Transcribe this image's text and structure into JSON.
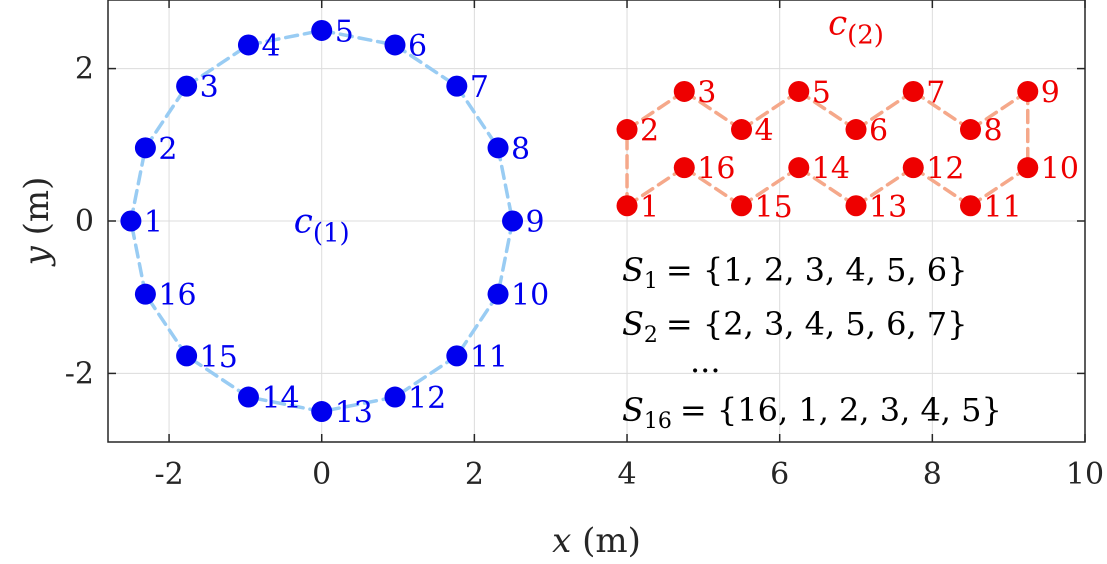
{
  "chart_data": {
    "type": "scatter",
    "xlabel": "x (m)",
    "ylabel": "y (m)",
    "xlim": [
      -2.8,
      10
    ],
    "ylim": [
      -2.9,
      2.9
    ],
    "xticks": [
      -2,
      0,
      2,
      4,
      6,
      8,
      10
    ],
    "xtick_labels": [
      "-2",
      "0",
      "2",
      "4",
      "6",
      "8",
      "10"
    ],
    "yticks": [
      -2,
      0,
      2
    ],
    "ytick_labels": [
      "-2",
      "0",
      "2"
    ],
    "grid": true,
    "series": [
      {
        "name": "c(1)",
        "color": "#0000ee",
        "line_color": "#99ccf3",
        "closed": true,
        "points": [
          {
            "id": "1",
            "x": -2.5,
            "y": 0
          },
          {
            "id": "2",
            "x": -2.31,
            "y": 0.96
          },
          {
            "id": "3",
            "x": -1.77,
            "y": 1.77
          },
          {
            "id": "4",
            "x": -0.96,
            "y": 2.31
          },
          {
            "id": "5",
            "x": 0,
            "y": 2.5
          },
          {
            "id": "6",
            "x": 0.96,
            "y": 2.31
          },
          {
            "id": "7",
            "x": 1.77,
            "y": 1.77
          },
          {
            "id": "8",
            "x": 2.31,
            "y": 0.96
          },
          {
            "id": "9",
            "x": 2.5,
            "y": 0
          },
          {
            "id": "10",
            "x": 2.31,
            "y": -0.96
          },
          {
            "id": "11",
            "x": 1.77,
            "y": -1.77
          },
          {
            "id": "12",
            "x": 0.96,
            "y": -2.31
          },
          {
            "id": "13",
            "x": 0,
            "y": -2.5
          },
          {
            "id": "14",
            "x": -0.96,
            "y": -2.31
          },
          {
            "id": "15",
            "x": -1.77,
            "y": -1.77
          },
          {
            "id": "16",
            "x": -2.31,
            "y": -0.96
          }
        ]
      },
      {
        "name": "c(2)",
        "color": "#ee0000",
        "line_color": "#f5a88a",
        "closed": true,
        "points": [
          {
            "id": "1",
            "x": 4.0,
            "y": 0.2
          },
          {
            "id": "2",
            "x": 4.0,
            "y": 1.2
          },
          {
            "id": "3",
            "x": 4.75,
            "y": 1.7
          },
          {
            "id": "4",
            "x": 5.5,
            "y": 1.2
          },
          {
            "id": "5",
            "x": 6.25,
            "y": 1.7
          },
          {
            "id": "6",
            "x": 7.0,
            "y": 1.2
          },
          {
            "id": "7",
            "x": 7.75,
            "y": 1.7
          },
          {
            "id": "8",
            "x": 8.5,
            "y": 1.2
          },
          {
            "id": "9",
            "x": 9.25,
            "y": 1.7
          },
          {
            "id": "10",
            "x": 9.25,
            "y": 0.7
          },
          {
            "id": "11",
            "x": 8.5,
            "y": 0.2
          },
          {
            "id": "12",
            "x": 7.75,
            "y": 0.7
          },
          {
            "id": "13",
            "x": 7.0,
            "y": 0.2
          },
          {
            "id": "14",
            "x": 6.25,
            "y": 0.7
          },
          {
            "id": "15",
            "x": 5.5,
            "y": 0.2
          },
          {
            "id": "16",
            "x": 4.75,
            "y": 0.7
          }
        ]
      }
    ],
    "annotations": [
      {
        "text_main": "c",
        "text_sub": "(1)",
        "x": 0,
        "y": -0.15,
        "color": "#0000ee"
      },
      {
        "text_main": "c",
        "text_sub": "(2)",
        "x": 7.0,
        "y": 2.45,
        "color": "#ee0000"
      }
    ],
    "set_lines": [
      {
        "symbol": "S",
        "sub": "1",
        "rhs": "= {1, 2, 3, 4, 5, 6}"
      },
      {
        "symbol": "S",
        "sub": "2",
        "rhs": "= {2, 3, 4, 5, 6, 7}"
      },
      {
        "ellipsis": "..."
      },
      {
        "symbol": "S",
        "sub": "16",
        "rhs": "= {16, 1, 2, 3, 4, 5}"
      }
    ]
  }
}
